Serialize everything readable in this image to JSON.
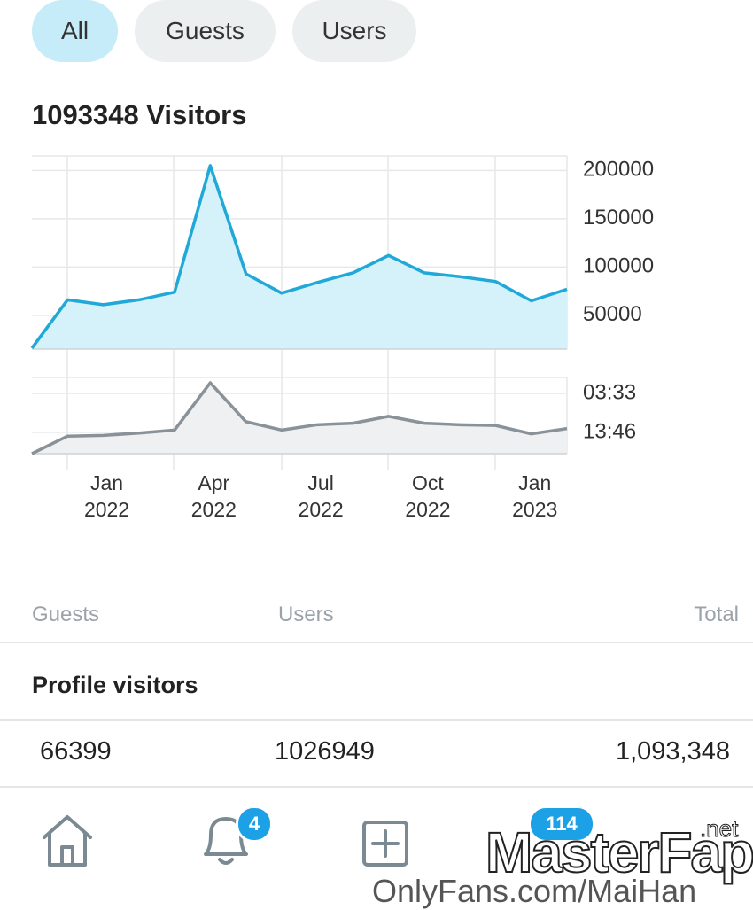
{
  "tabs": [
    "All",
    "Guests",
    "Users"
  ],
  "visitors_chart": {
    "type": "line",
    "title": "1093348 Visitors",
    "categories": [
      null,
      null,
      "Jan 2022",
      null,
      null,
      "Apr 2022",
      null,
      null,
      "Jul 2022",
      null,
      null,
      "Oct 2022",
      null,
      null,
      "Jan 2023",
      null
    ],
    "values": [
      16000,
      66000,
      61000,
      66000,
      74000,
      205000,
      93000,
      73000,
      84000,
      94000,
      112000,
      94000,
      90000,
      85000,
      65000,
      77000
    ],
    "color": "#1fa8d8",
    "ylim": [
      15000,
      215000
    ],
    "yticks": [
      50000,
      100000,
      150000,
      200000
    ],
    "grid": true
  },
  "duration_chart": {
    "type": "line",
    "values": [
      0,
      23,
      24,
      27,
      31,
      93,
      42,
      31,
      38,
      40,
      49,
      40,
      38,
      37,
      26,
      33
    ],
    "color": "#8a9299",
    "ylim": [
      0,
      100
    ],
    "yticks": [
      {
        "value": 79,
        "label": "03:33"
      },
      {
        "value": 28,
        "label": "13:46"
      }
    ],
    "grid": true
  },
  "table": {
    "columns": [
      "Guests",
      "Users",
      "Total"
    ],
    "section": "Profile visitors",
    "rows": [
      [
        "66399",
        "1026949",
        "1,093,348"
      ]
    ]
  },
  "nav": {
    "badges": [
      "4",
      "114"
    ]
  },
  "watermark": {
    "brand": "MasterFap",
    "suffix": ".net",
    "url": "OnlyFans.com/MaiHan"
  }
}
